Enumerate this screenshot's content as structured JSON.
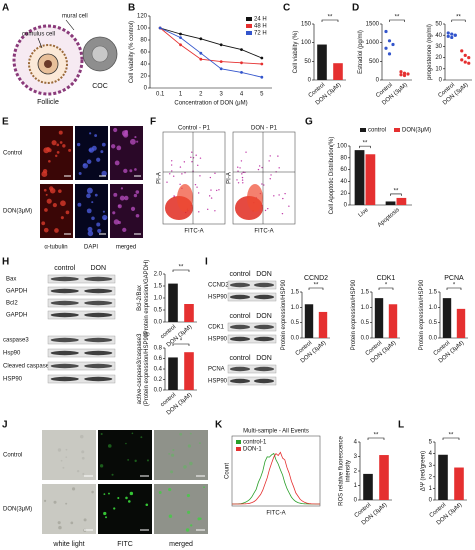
{
  "panel_labels": [
    "A",
    "B",
    "C",
    "D",
    "E",
    "F",
    "G",
    "H",
    "I",
    "J",
    "K",
    "L"
  ],
  "schematic": {
    "mural": "mural cell",
    "cumulus": "cumulus cell",
    "follicle": "Follicle",
    "coc": "COC"
  },
  "immunofluorescence": {
    "rows": [
      "Control",
      "DON(3μM)"
    ],
    "columns": [
      "α-tubulin",
      "DAPI",
      "merged"
    ]
  },
  "flow_cytometry": {
    "titles": [
      "Control - P1",
      "DON - P1"
    ],
    "xlabel": "FITC-A",
    "ylabel": "PI-A"
  },
  "western_h": {
    "header": [
      "control",
      "DON"
    ],
    "blot1": [
      "Bax",
      "GAPDH",
      "Bcl2",
      "GAPDH"
    ],
    "blot2": [
      "caspase3",
      "Hsp90",
      "Cleaved caspase3",
      "HSP90"
    ]
  },
  "western_i": {
    "header": [
      "control",
      "DON"
    ],
    "blot1": [
      "CCND2",
      "HSP90"
    ],
    "blot2": [
      "CDK1",
      "HSP90"
    ],
    "blot3": [
      "PCNA",
      "HSP90"
    ]
  },
  "ros_imaging": {
    "rows": [
      "Control",
      "DON(3μM)"
    ],
    "columns": [
      "white light",
      "FITC",
      "merged"
    ]
  },
  "ros_histogram": {
    "title": "Multi-sample - All Events",
    "legend": [
      "control-1",
      "DON-1"
    ],
    "xlabel": "FITC-A",
    "ylabel": "Count"
  },
  "chart_data": [
    {
      "type": "line",
      "xlabel": "Concentration of DON (μM)",
      "ylabel": "Cell viability (% control)",
      "categories": [
        "0.1",
        "1",
        "2",
        "3",
        "4",
        "5"
      ],
      "series": [
        {
          "name": "24 H",
          "color": "#111111",
          "values": [
            100,
            90,
            82,
            72,
            64,
            50
          ]
        },
        {
          "name": "48 H",
          "color": "#e53030",
          "values": [
            100,
            72,
            48,
            44,
            42,
            40
          ]
        },
        {
          "name": "72 H",
          "color": "#3355cc",
          "values": [
            100,
            84,
            58,
            32,
            26,
            18
          ]
        }
      ],
      "ylim": [
        0,
        120
      ],
      "yticks": [
        0,
        20,
        40,
        60,
        80,
        100,
        120
      ],
      "legend": "upper right"
    },
    {
      "type": "bar",
      "ylabel": "Cell viability (%)",
      "categories": [
        "Control",
        "DON (3μM)"
      ],
      "values": [
        95,
        45
      ],
      "colors": [
        "#1a1a1a",
        "#e53030"
      ],
      "ylim": [
        0,
        150
      ],
      "yticks": [
        0,
        50,
        100,
        150
      ],
      "significance": "**"
    },
    {
      "type": "dot",
      "ylabel": "Estradiol (pg/ml)",
      "categories": [
        "Control",
        "DON (3μM)"
      ],
      "points": [
        [
          1300,
          1050,
          950,
          850,
          700
        ],
        [
          220,
          180,
          160,
          140,
          120
        ]
      ],
      "colors": [
        "#3355cc",
        "#e53030"
      ],
      "ylim": [
        0,
        1500
      ],
      "yticks": [
        0,
        500,
        1000,
        1500
      ],
      "significance": "**"
    },
    {
      "type": "dot",
      "ylabel": "progesterone (ng/ml)",
      "categories": [
        "Control",
        "DON (3μM)"
      ],
      "points": [
        [
          42,
          41,
          40,
          39,
          38,
          40
        ],
        [
          26,
          22,
          20,
          18,
          16,
          15
        ]
      ],
      "colors": [
        "#3355cc",
        "#e53030"
      ],
      "ylim": [
        0,
        50
      ],
      "yticks": [
        0,
        10,
        20,
        30,
        40,
        50
      ],
      "significance": "**"
    },
    {
      "type": "grouped_bar",
      "ylabel": "Cell Apoptotic Distribution(%)",
      "categories": [
        "Live",
        "Apoptosis"
      ],
      "series": [
        {
          "name": "control",
          "color": "#1a1a1a",
          "values": [
            93,
            6
          ]
        },
        {
          "name": "DON(3μM)",
          "color": "#e53030",
          "values": [
            86,
            12
          ]
        }
      ],
      "ylim": [
        0,
        100
      ],
      "yticks": [
        0,
        20,
        40,
        60,
        80,
        100
      ],
      "significance": "**",
      "legend": "top"
    },
    {
      "type": "bar",
      "ylabel": [
        "Bcl-2/Bax",
        "(Protein expression/GAPDH)"
      ],
      "categories": [
        "control",
        "DON (3μM)"
      ],
      "values": [
        1.6,
        0.75
      ],
      "colors": [
        "#1a1a1a",
        "#e53030"
      ],
      "ylim": [
        0,
        2
      ],
      "yticks": [
        {
          "value": 0,
          "label": "0.0"
        },
        {
          "value": 0.5,
          "label": "0.5"
        },
        {
          "value": 1,
          "label": "1.0"
        },
        {
          "value": 1.5,
          "label": "1.5"
        },
        {
          "value": 2,
          "label": "2.0"
        }
      ],
      "significance": "**"
    },
    {
      "type": "bar",
      "ylabel": [
        "active-caspase3/caspase3",
        "(Protein expression/HSP90)"
      ],
      "categories": [
        "control",
        "DON (3μM)"
      ],
      "values": [
        0.62,
        0.72
      ],
      "colors": [
        "#1a1a1a",
        "#e53030"
      ],
      "ylim": [
        0,
        0.8
      ],
      "yticks": [
        {
          "value": 0,
          "label": "0.0"
        },
        0.2,
        0.4,
        0.6,
        0.8
      ],
      "significance": "*"
    },
    {
      "type": "bar",
      "title": "CCND2",
      "ylabel": "Protein expression/HSP90",
      "categories": [
        "Control",
        "DON (3μM)"
      ],
      "values": [
        1.1,
        0.85
      ],
      "colors": [
        "#1a1a1a",
        "#e53030"
      ],
      "ylim": [
        0,
        1.5
      ],
      "yticks": [
        {
          "value": 0,
          "label": "0.0"
        },
        0.5,
        {
          "value": 1,
          "label": "1.0"
        },
        1.5
      ],
      "significance": "**"
    },
    {
      "type": "bar",
      "title": "CDK1",
      "ylabel": "Protein expression/HSP90",
      "categories": [
        "Control",
        "DON (3μM)"
      ],
      "values": [
        1.3,
        1.1
      ],
      "colors": [
        "#1a1a1a",
        "#e53030"
      ],
      "ylim": [
        0,
        1.5
      ],
      "yticks": [
        {
          "value": 0,
          "label": "0.0"
        },
        0.5,
        {
          "value": 1,
          "label": "1.0"
        },
        1.5
      ],
      "significance": "*"
    },
    {
      "type": "bar",
      "title": "PCNA",
      "ylabel": "Protein expression/HSP90",
      "categories": [
        "Control",
        "DON (3μM)"
      ],
      "values": [
        1.3,
        0.95
      ],
      "colors": [
        "#1a1a1a",
        "#e53030"
      ],
      "ylim": [
        0,
        1.5
      ],
      "yticks": [
        {
          "value": 0,
          "label": "0.0"
        },
        0.5,
        {
          "value": 1,
          "label": "1.0"
        },
        1.5
      ],
      "significance": "*"
    },
    {
      "type": "bar",
      "ylabel": [
        "ROS relative fluorescence",
        "intensity"
      ],
      "categories": [
        "Control",
        "DON (3μM)"
      ],
      "values": [
        1.8,
        3.1
      ],
      "colors": [
        "#1a1a1a",
        "#e53030"
      ],
      "ylim": [
        0,
        4
      ],
      "yticks": [
        0,
        1,
        2,
        3,
        4
      ],
      "significance": "**"
    },
    {
      "type": "bar",
      "ylabel": "ΔΨ (red/green)",
      "categories": [
        "Control",
        "DON (3μM)"
      ],
      "values": [
        3.9,
        2.8
      ],
      "colors": [
        "#1a1a1a",
        "#e53030"
      ],
      "ylim": [
        0,
        5
      ],
      "yticks": [
        0,
        1,
        2,
        3,
        4,
        5
      ],
      "significance": "**"
    }
  ]
}
